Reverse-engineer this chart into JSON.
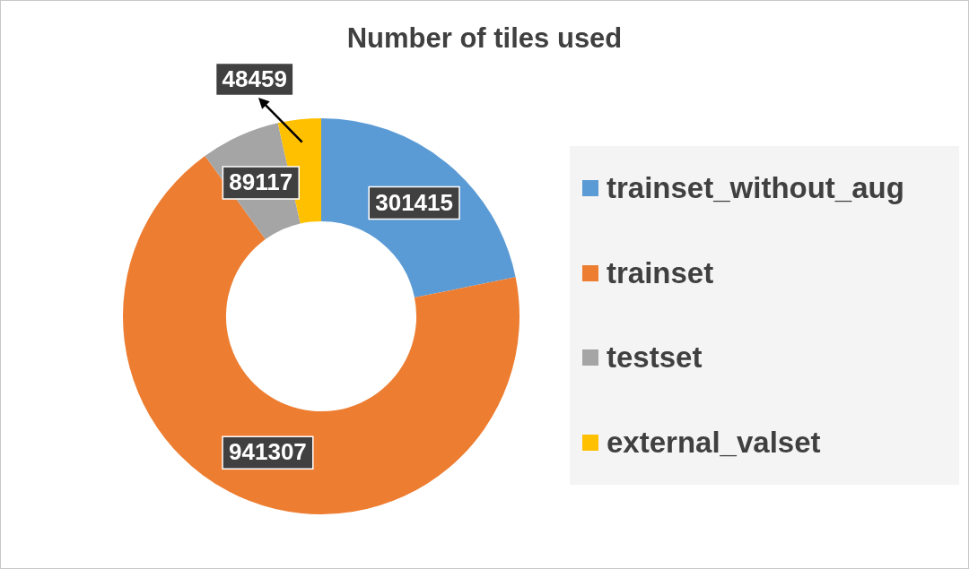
{
  "chart_data": {
    "type": "donut",
    "title": "Number of tiles used",
    "categories": [
      "trainset_without_aug",
      "trainset",
      "testset",
      "external_valset"
    ],
    "values": [
      301415,
      941307,
      89117,
      48459
    ],
    "colors": [
      "#5b9bd5",
      "#ed7d31",
      "#a5a5a5",
      "#ffc000"
    ],
    "data_labels": true,
    "legend": "right"
  }
}
